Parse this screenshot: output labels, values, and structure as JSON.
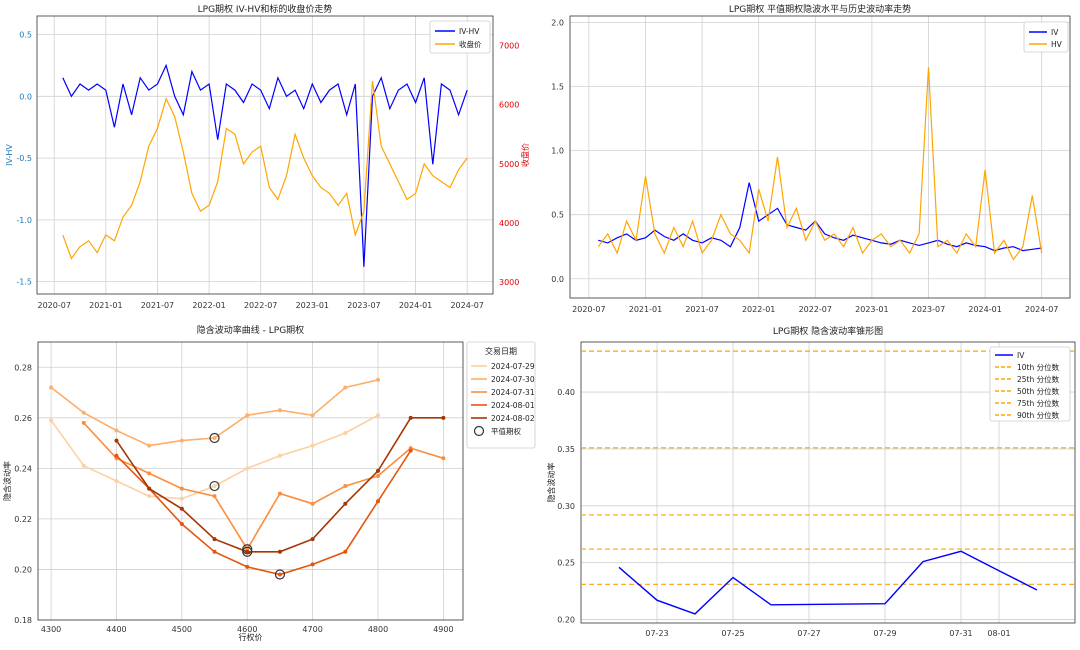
{
  "chart_data": [
    {
      "type": "line",
      "title": "LPG期权 IV-HV和标的收盘价走势",
      "xlabel": "",
      "ylabel": "IV-HV",
      "y2label": "收盘价",
      "x_ticks": [
        "2020-07",
        "2021-01",
        "2021-07",
        "2022-01",
        "2022-07",
        "2023-01",
        "2023-07",
        "2024-01",
        "2024-07"
      ],
      "ylim": [
        -1.6,
        0.65
      ],
      "yticks": [
        -1.5,
        -1.0,
        -0.5,
        0.0,
        0.5
      ],
      "y2lim": [
        2800,
        7500
      ],
      "y2ticks": [
        3000,
        4000,
        5000,
        6000,
        7000
      ],
      "grid": true,
      "legend": "top-right",
      "series": [
        {
          "name": "IV-HV",
          "axis": "left",
          "color": "#0000ff",
          "x": [
            "2020-08",
            "2020-09",
            "2020-10",
            "2020-11",
            "2020-12",
            "2021-01",
            "2021-02",
            "2021-03",
            "2021-04",
            "2021-05",
            "2021-06",
            "2021-07",
            "2021-08",
            "2021-09",
            "2021-10",
            "2021-11",
            "2021-12",
            "2022-01",
            "2022-02",
            "2022-03",
            "2022-04",
            "2022-05",
            "2022-06",
            "2022-07",
            "2022-08",
            "2022-09",
            "2022-10",
            "2022-11",
            "2022-12",
            "2023-01",
            "2023-02",
            "2023-03",
            "2023-04",
            "2023-05",
            "2023-06",
            "2023-07",
            "2023-08",
            "2023-09",
            "2023-10",
            "2023-11",
            "2023-12",
            "2024-01",
            "2024-02",
            "2024-03",
            "2024-04",
            "2024-05",
            "2024-06",
            "2024-07"
          ],
          "y": [
            0.15,
            0.0,
            0.1,
            0.05,
            0.1,
            0.05,
            -0.25,
            0.1,
            -0.15,
            0.15,
            0.05,
            0.1,
            0.25,
            0.0,
            -0.15,
            0.2,
            0.05,
            0.1,
            -0.35,
            0.1,
            0.05,
            -0.05,
            0.1,
            0.05,
            -0.1,
            0.15,
            0.0,
            0.05,
            -0.1,
            0.1,
            -0.05,
            0.05,
            0.1,
            -0.15,
            0.1,
            -1.38,
            0.0,
            0.15,
            -0.1,
            0.05,
            0.1,
            -0.05,
            0.15,
            -0.55,
            0.1,
            0.05,
            -0.15,
            0.05
          ]
        },
        {
          "name": "收盘价",
          "axis": "right",
          "color": "#ffa500",
          "x": [
            "2020-08",
            "2020-09",
            "2020-10",
            "2020-11",
            "2020-12",
            "2021-01",
            "2021-02",
            "2021-03",
            "2021-04",
            "2021-05",
            "2021-06",
            "2021-07",
            "2021-08",
            "2021-09",
            "2021-10",
            "2021-11",
            "2021-12",
            "2022-01",
            "2022-02",
            "2022-03",
            "2022-04",
            "2022-05",
            "2022-06",
            "2022-07",
            "2022-08",
            "2022-09",
            "2022-10",
            "2022-11",
            "2022-12",
            "2023-01",
            "2023-02",
            "2023-03",
            "2023-04",
            "2023-05",
            "2023-06",
            "2023-07",
            "2023-08",
            "2023-09",
            "2023-10",
            "2023-11",
            "2023-12",
            "2024-01",
            "2024-02",
            "2024-03",
            "2024-04",
            "2024-05",
            "2024-06",
            "2024-07"
          ],
          "y": [
            3800,
            3400,
            3600,
            3700,
            3500,
            3800,
            3700,
            4100,
            4300,
            4700,
            5300,
            5600,
            6100,
            5800,
            5200,
            4500,
            4200,
            4300,
            4700,
            5600,
            5500,
            5000,
            5200,
            5300,
            4600,
            4400,
            4800,
            5500,
            5100,
            4800,
            4600,
            4500,
            4300,
            4500,
            3800,
            4200,
            6400,
            5300,
            5000,
            4700,
            4400,
            4500,
            5000,
            4800,
            4700,
            4600,
            4900,
            5100
          ]
        }
      ]
    },
    {
      "type": "line",
      "title": "LPG期权 平值期权隐波水平与历史波动率走势",
      "xlabel": "",
      "ylabel": "",
      "x_ticks": [
        "2020-07",
        "2021-01",
        "2021-07",
        "2022-01",
        "2022-07",
        "2023-01",
        "2023-07",
        "2024-01",
        "2024-07"
      ],
      "ylim": [
        -0.15,
        2.05
      ],
      "yticks": [
        0.0,
        0.5,
        1.0,
        1.5,
        2.0
      ],
      "grid": true,
      "legend": "top-right",
      "series": [
        {
          "name": "IV",
          "color": "#0000ff",
          "x": [
            "2020-08",
            "2020-09",
            "2020-10",
            "2020-11",
            "2020-12",
            "2021-01",
            "2021-02",
            "2021-03",
            "2021-04",
            "2021-05",
            "2021-06",
            "2021-07",
            "2021-08",
            "2021-09",
            "2021-10",
            "2021-11",
            "2021-12",
            "2022-01",
            "2022-02",
            "2022-03",
            "2022-04",
            "2022-05",
            "2022-06",
            "2022-07",
            "2022-08",
            "2022-09",
            "2022-10",
            "2022-11",
            "2022-12",
            "2023-01",
            "2023-02",
            "2023-03",
            "2023-04",
            "2023-05",
            "2023-06",
            "2023-07",
            "2023-08",
            "2023-09",
            "2023-10",
            "2023-11",
            "2023-12",
            "2024-01",
            "2024-02",
            "2024-03",
            "2024-04",
            "2024-05",
            "2024-06",
            "2024-07"
          ],
          "y": [
            0.3,
            0.28,
            0.32,
            0.35,
            0.3,
            0.32,
            0.38,
            0.33,
            0.3,
            0.35,
            0.3,
            0.28,
            0.32,
            0.3,
            0.25,
            0.4,
            0.75,
            0.45,
            0.5,
            0.55,
            0.42,
            0.4,
            0.38,
            0.45,
            0.35,
            0.32,
            0.3,
            0.34,
            0.32,
            0.3,
            0.28,
            0.27,
            0.3,
            0.28,
            0.26,
            0.28,
            0.3,
            0.27,
            0.25,
            0.28,
            0.26,
            0.25,
            0.22,
            0.24,
            0.25,
            0.22,
            0.23,
            0.24
          ]
        },
        {
          "name": "HV",
          "color": "#ffa500",
          "x": [
            "2020-08",
            "2020-09",
            "2020-10",
            "2020-11",
            "2020-12",
            "2021-01",
            "2021-02",
            "2021-03",
            "2021-04",
            "2021-05",
            "2021-06",
            "2021-07",
            "2021-08",
            "2021-09",
            "2021-10",
            "2021-11",
            "2021-12",
            "2022-01",
            "2022-02",
            "2022-03",
            "2022-04",
            "2022-05",
            "2022-06",
            "2022-07",
            "2022-08",
            "2022-09",
            "2022-10",
            "2022-11",
            "2022-12",
            "2023-01",
            "2023-02",
            "2023-03",
            "2023-04",
            "2023-05",
            "2023-06",
            "2023-07",
            "2023-08",
            "2023-09",
            "2023-10",
            "2023-11",
            "2023-12",
            "2024-01",
            "2024-02",
            "2024-03",
            "2024-04",
            "2024-05",
            "2024-06",
            "2024-07"
          ],
          "y": [
            0.25,
            0.35,
            0.2,
            0.45,
            0.3,
            0.8,
            0.35,
            0.2,
            0.4,
            0.25,
            0.45,
            0.2,
            0.3,
            0.5,
            0.35,
            0.3,
            0.2,
            0.7,
            0.45,
            0.95,
            0.4,
            0.55,
            0.3,
            0.45,
            0.3,
            0.35,
            0.25,
            0.4,
            0.2,
            0.3,
            0.35,
            0.25,
            0.3,
            0.2,
            0.35,
            1.65,
            0.25,
            0.3,
            0.2,
            0.35,
            0.25,
            0.85,
            0.2,
            0.3,
            0.15,
            0.25,
            0.65,
            0.2
          ]
        }
      ]
    },
    {
      "type": "line",
      "title": "隐含波动率曲线 - LPG期权",
      "xlabel": "行权价",
      "ylabel": "隐含波动率",
      "xlim": [
        4280,
        4930
      ],
      "xticks": [
        4300,
        4400,
        4500,
        4600,
        4700,
        4800,
        4900
      ],
      "ylim": [
        0.18,
        0.29
      ],
      "yticks": [
        0.18,
        0.2,
        0.22,
        0.24,
        0.26,
        0.28
      ],
      "grid": true,
      "legend": "top-right",
      "legend_title": "交易日期",
      "atm_label": "平值期权",
      "series": [
        {
          "name": "2024-07-29",
          "color": "#fdd0a2",
          "x": [
            4300,
            4350,
            4400,
            4450,
            4500,
            4550,
            4600,
            4650,
            4700,
            4750,
            4800
          ],
          "y": [
            0.259,
            0.241,
            0.235,
            0.229,
            0.228,
            0.233,
            0.24,
            0.245,
            0.249,
            0.254,
            0.261
          ],
          "atm": [
            4550,
            0.233
          ]
        },
        {
          "name": "2024-07-30",
          "color": "#fdae6b",
          "x": [
            4300,
            4350,
            4400,
            4450,
            4500,
            4550,
            4600,
            4650,
            4700,
            4750,
            4800
          ],
          "y": [
            0.272,
            0.262,
            0.255,
            0.249,
            0.251,
            0.252,
            0.261,
            0.263,
            0.261,
            0.272,
            0.275
          ],
          "atm": [
            4550,
            0.252
          ]
        },
        {
          "name": "2024-07-31",
          "color": "#fd8d3c",
          "x": [
            4350,
            4400,
            4450,
            4500,
            4550,
            4600,
            4650,
            4700,
            4750,
            4800,
            4850,
            4900
          ],
          "y": [
            0.258,
            0.244,
            0.238,
            0.232,
            0.229,
            0.208,
            0.23,
            0.226,
            0.233,
            0.237,
            0.248,
            0.244
          ],
          "atm": [
            4600,
            0.208
          ]
        },
        {
          "name": "2024-08-01",
          "color": "#e6550d",
          "x": [
            4400,
            4450,
            4500,
            4550,
            4600,
            4650,
            4700,
            4750,
            4800,
            4850
          ],
          "y": [
            0.245,
            0.232,
            0.218,
            0.207,
            0.201,
            0.198,
            0.202,
            0.207,
            0.227,
            0.247
          ],
          "atm": [
            4650,
            0.198
          ]
        },
        {
          "name": "2024-08-02",
          "color": "#a63603",
          "x": [
            4400,
            4450,
            4500,
            4550,
            4600,
            4650,
            4700,
            4750,
            4800,
            4850,
            4900
          ],
          "y": [
            0.251,
            0.232,
            0.224,
            0.212,
            0.207,
            0.207,
            0.212,
            0.226,
            0.239,
            0.26,
            0.26
          ],
          "atm": [
            4600,
            0.207
          ]
        }
      ]
    },
    {
      "type": "line",
      "title": "LPG期权 隐含波动率锥形图",
      "xlabel": "",
      "ylabel": "隐含波动率",
      "x_ticks": [
        "07-23",
        "07-25",
        "07-27",
        "07-29",
        "07-31",
        "08-01"
      ],
      "ylim": [
        0.197,
        0.444
      ],
      "yticks": [
        0.2,
        0.25,
        0.3,
        0.35,
        0.4
      ],
      "grid": true,
      "legend": "top-right",
      "series": [
        {
          "name": "IV",
          "color": "#0000ff",
          "x": [
            "07-22",
            "07-23",
            "07-24",
            "07-25",
            "07-26",
            "07-29",
            "07-30",
            "07-31",
            "08-01",
            "08-02"
          ],
          "y": [
            0.246,
            0.217,
            0.205,
            0.237,
            0.213,
            0.214,
            0.251,
            0.26,
            0.243,
            0.226
          ]
        }
      ],
      "reference_lines": [
        {
          "name": "10th 分位数",
          "value": 0.231,
          "color": "#ffa500"
        },
        {
          "name": "25th 分位数",
          "value": 0.262,
          "color": "#ffa500"
        },
        {
          "name": "50th 分位数",
          "value": 0.292,
          "color": "#ffa500"
        },
        {
          "name": "75th 分位数",
          "value": 0.351,
          "color": "#ffa500"
        },
        {
          "name": "90th 分位数",
          "value": 0.436,
          "color": "#ffa500"
        }
      ]
    }
  ]
}
